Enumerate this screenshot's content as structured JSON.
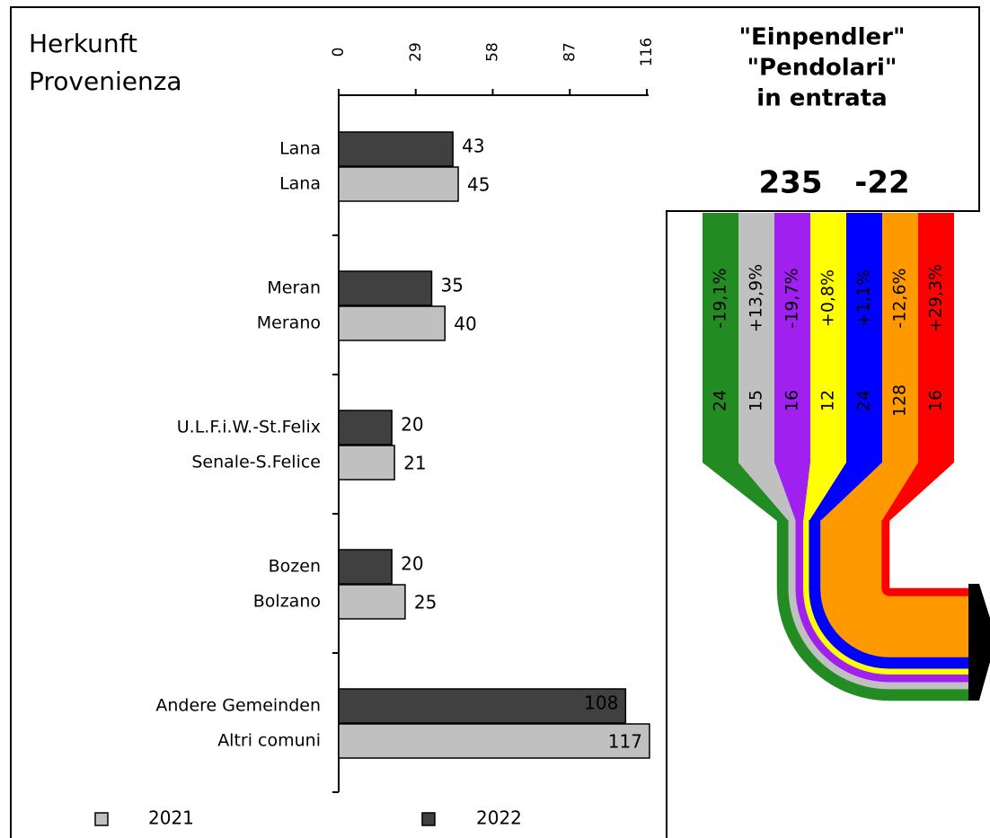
{
  "chart_data": [
    {
      "type": "bar",
      "title": [
        "Herkunft",
        "Provenienza"
      ],
      "categories": [
        [
          "Lana",
          "Lana"
        ],
        [
          "Meran",
          "Merano"
        ],
        [
          "U.L.F.i.W.-St.Felix",
          "Senale-S.Felice"
        ],
        [
          "Bozen",
          "Bolzano"
        ],
        [
          "Andere Gemeinden",
          "Altri comuni"
        ]
      ],
      "series": [
        {
          "name": "2022",
          "color": "#404040",
          "values": [
            43,
            35,
            20,
            20,
            108
          ]
        },
        {
          "name": "2021",
          "color": "#c0c0c0",
          "values": [
            45,
            40,
            21,
            25,
            117
          ]
        }
      ],
      "xlim": [
        0,
        116
      ],
      "xticks": [
        0,
        29,
        58,
        87,
        116
      ]
    },
    {
      "type": "flow",
      "title": [
        "\"Einpendler\"",
        "\"Pendolari\"",
        "in entrata"
      ],
      "total": 235,
      "change": -22,
      "series": [
        {
          "color": "#228b22",
          "values": [
            24
          ],
          "change": [
            -19.1
          ],
          "value_labels": [
            "-19,1%"
          ]
        },
        {
          "color": "#c0c0c0",
          "values": [
            15
          ],
          "change": [
            13.9
          ],
          "value_labels": [
            "+13,9%"
          ]
        },
        {
          "color": "#a020f0",
          "values": [
            16
          ],
          "change": [
            -19.7
          ],
          "value_labels": [
            "-19,7%"
          ]
        },
        {
          "color": "#ffff00",
          "values": [
            12
          ],
          "change": [
            0.8
          ],
          "value_labels": [
            "+0,8%"
          ]
        },
        {
          "color": "#0000ff",
          "values": [
            24
          ],
          "change": [
            1.1
          ],
          "value_labels": [
            "+1,1%"
          ]
        },
        {
          "color": "#ff9900",
          "values": [
            128
          ],
          "change": [
            -12.6
          ],
          "value_labels": [
            "-12,6%"
          ]
        },
        {
          "color": "#ff0000",
          "values": [
            16
          ],
          "change": [
            29.3
          ],
          "value_labels": [
            "+29,3%"
          ]
        }
      ]
    }
  ]
}
